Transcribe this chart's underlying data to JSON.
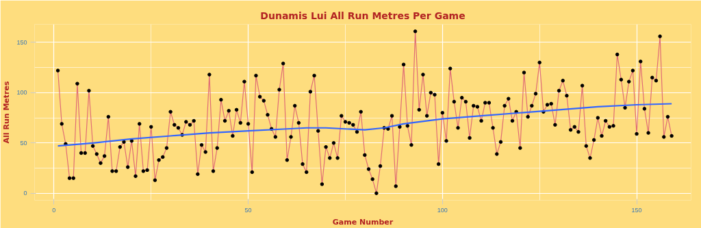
{
  "chart_data": {
    "type": "line",
    "title": "Dunamis Lui All Run Metres Per Game",
    "xlabel": "Game Number",
    "ylabel": "All Run Metres",
    "x": [
      1,
      2,
      3,
      4,
      5,
      6,
      7,
      8,
      9,
      10,
      11,
      12,
      13,
      14,
      15,
      16,
      17,
      18,
      19,
      20,
      21,
      22,
      23,
      24,
      25,
      26,
      27,
      28,
      29,
      30,
      31,
      32,
      33,
      34,
      35,
      36,
      37,
      38,
      39,
      40,
      41,
      42,
      43,
      44,
      45,
      46,
      47,
      48,
      49,
      50,
      51,
      52,
      53,
      54,
      55,
      56,
      57,
      58,
      59,
      60,
      61,
      62,
      63,
      64,
      65,
      66,
      67,
      68,
      69,
      70,
      71,
      72,
      73,
      74,
      75,
      76,
      77,
      78,
      79,
      80,
      81,
      82,
      83,
      84,
      85,
      86,
      87,
      88,
      89,
      90,
      91,
      92,
      93,
      94,
      95,
      96,
      97,
      98,
      99,
      100,
      101,
      102,
      103,
      104,
      105,
      106,
      107,
      108,
      109,
      110,
      111,
      112,
      113,
      114,
      115,
      116,
      117,
      118,
      119,
      120,
      121,
      122,
      123,
      124,
      125,
      126,
      127,
      128,
      129,
      130,
      131,
      132,
      133,
      134,
      135,
      136,
      137,
      138,
      139,
      140,
      141,
      142,
      143,
      144,
      145,
      146,
      147,
      148,
      149,
      150,
      151,
      152,
      153,
      154,
      155,
      156,
      157,
      158,
      159
    ],
    "series": [
      {
        "color": "#e06c75",
        "marker": "circle",
        "values": [
          122,
          69,
          49,
          15,
          15,
          109,
          40,
          40,
          102,
          47,
          39,
          30,
          37,
          76,
          22,
          22,
          46,
          51,
          26,
          52,
          17,
          69,
          22,
          23,
          66,
          13,
          33,
          36,
          45,
          81,
          68,
          65,
          58,
          71,
          68,
          72,
          19,
          48,
          41,
          118,
          22,
          45,
          93,
          72,
          82,
          57,
          83,
          70,
          111,
          69,
          21,
          117,
          96,
          92,
          78,
          64,
          56,
          103,
          129,
          33,
          56,
          87,
          70,
          29,
          21,
          101,
          117,
          62,
          9,
          46,
          35,
          50,
          35,
          77,
          71,
          70,
          68,
          61,
          81,
          38,
          24,
          14,
          0,
          27,
          65,
          64,
          77,
          7,
          66,
          128,
          67,
          48,
          161,
          83,
          118,
          77,
          100,
          98,
          29,
          80,
          52,
          124,
          91,
          65,
          95,
          91,
          55,
          87,
          86,
          72,
          90,
          90,
          65,
          39,
          51,
          87,
          94,
          72,
          81,
          45,
          120,
          76,
          87,
          99,
          130,
          81,
          88,
          89,
          68,
          102,
          112,
          97,
          63,
          66,
          61,
          107,
          47,
          35,
          53,
          75,
          57,
          72,
          66,
          67,
          138,
          113,
          85,
          111,
          122,
          59,
          131,
          84,
          60,
          115,
          112,
          156,
          56,
          76,
          57
        ]
      },
      {
        "type": "line",
        "color": "#3366ff",
        "marker": "none",
        "x": [
          1,
          10,
          20,
          30,
          40,
          50,
          60,
          65,
          70,
          75,
          80,
          85,
          90,
          100,
          110,
          120,
          130,
          140,
          150,
          159
        ],
        "values": [
          47,
          50,
          54,
          57,
          60,
          62,
          64,
          65,
          65,
          64,
          63,
          65,
          69,
          74,
          77,
          80,
          83,
          86,
          88,
          89
        ]
      }
    ],
    "xlim": [
      -5,
      164
    ],
    "ylim": [
      -7,
      168
    ],
    "xticks": [
      0,
      50,
      100,
      150
    ],
    "yticks": [
      0,
      50,
      100,
      150
    ],
    "grid": true
  }
}
